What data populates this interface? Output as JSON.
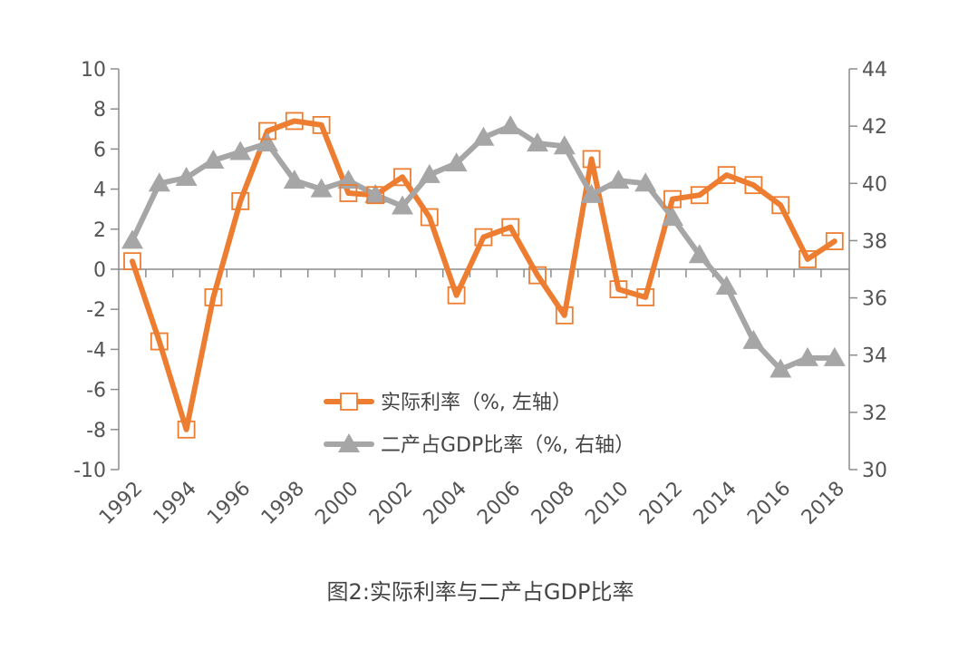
{
  "chart_data": {
    "type": "line",
    "title": "图2:实际利率与二产占GDP比率",
    "x": [
      1992,
      1993,
      1994,
      1995,
      1996,
      1997,
      1998,
      1999,
      2000,
      2001,
      2002,
      2003,
      2004,
      2005,
      2006,
      2007,
      2008,
      2009,
      2010,
      2011,
      2012,
      2013,
      2014,
      2015,
      2016,
      2017,
      2018
    ],
    "x_tick_labels": [
      "1992",
      "1994",
      "1996",
      "1998",
      "2000",
      "2002",
      "2004",
      "2006",
      "2008",
      "2010",
      "2012",
      "2014",
      "2016",
      "2018"
    ],
    "y_left": {
      "ylim": [
        -10,
        10
      ],
      "ticks": [
        "10",
        "8",
        "6",
        "4",
        "2",
        "0",
        "-2",
        "-4",
        "-6",
        "-8",
        "-10"
      ]
    },
    "y_right": {
      "ylim": [
        30,
        44
      ],
      "ticks": [
        "44",
        "42",
        "40",
        "38",
        "36",
        "34",
        "32",
        "30"
      ]
    },
    "series": [
      {
        "name": "实际利率（%, 左轴）",
        "axis": "left",
        "color": "#ED7D31",
        "marker": "square",
        "values": [
          0.4,
          -3.6,
          -8.0,
          -1.4,
          3.4,
          6.9,
          7.4,
          7.2,
          3.8,
          3.7,
          4.6,
          2.6,
          -1.3,
          1.6,
          2.1,
          -0.3,
          -2.3,
          5.5,
          -1.0,
          -1.4,
          3.5,
          3.7,
          4.7,
          4.2,
          3.2,
          0.5,
          1.4
        ]
      },
      {
        "name": "二产占GDP比率（%, 右轴）",
        "axis": "right",
        "color": "#A6A6A6",
        "marker": "triangle",
        "values": [
          38.0,
          40.0,
          40.2,
          40.8,
          41.1,
          41.4,
          40.1,
          39.8,
          40.1,
          39.6,
          39.2,
          40.3,
          40.7,
          41.6,
          42.0,
          41.4,
          41.3,
          39.6,
          40.1,
          40.0,
          38.8,
          37.5,
          36.4,
          34.5,
          33.5,
          33.9,
          33.9
        ]
      }
    ],
    "legend": "center"
  }
}
